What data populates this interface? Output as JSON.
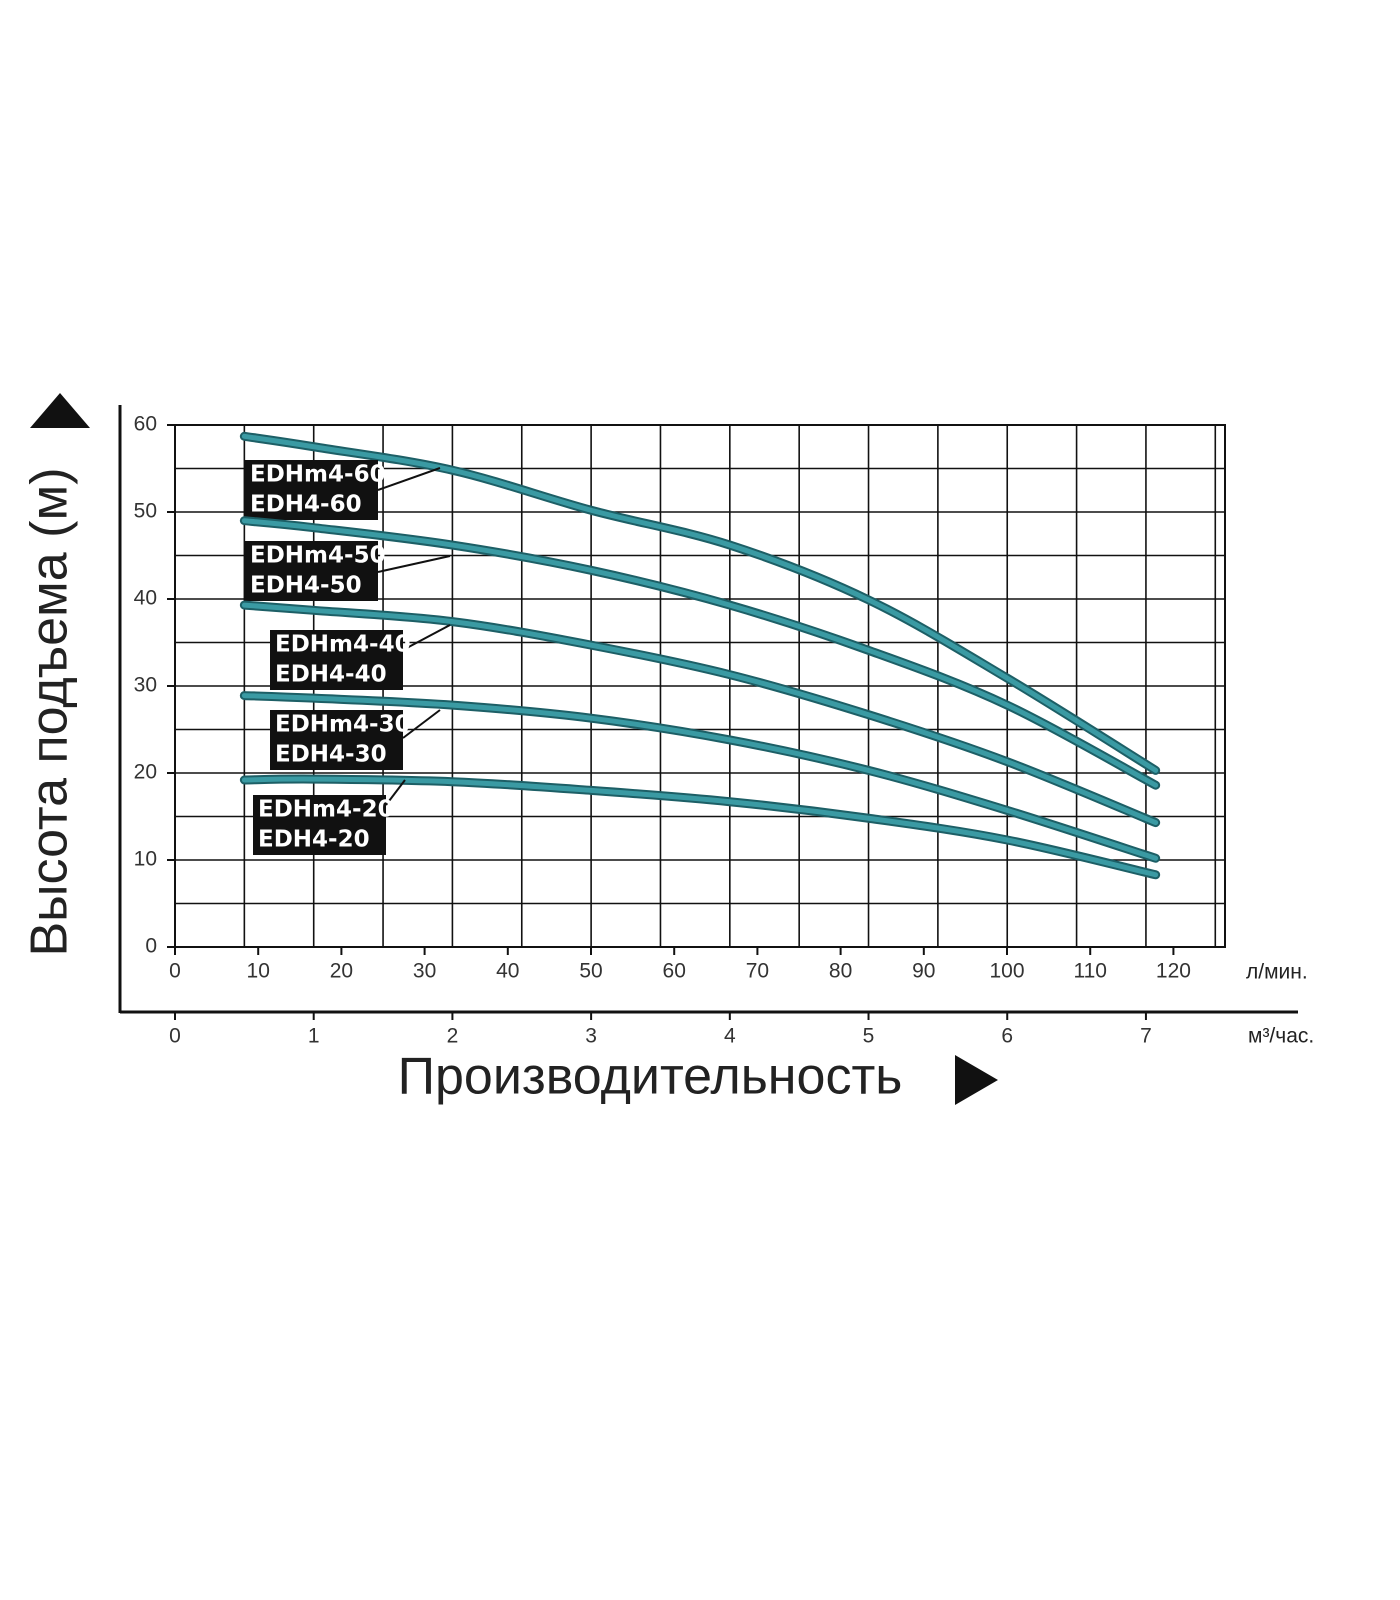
{
  "chart_data": {
    "type": "line",
    "y_label": "Высота подъема (м)",
    "x_label": "Производительность",
    "x_unit": "м³/час.",
    "x2_unit": "л/мин.",
    "xlim": [
      0,
      7.57
    ],
    "xticks": [
      0,
      1,
      2,
      3,
      4,
      5,
      6,
      7
    ],
    "x2lim": [
      0,
      126.2
    ],
    "x2ticks": [
      0,
      10,
      20,
      30,
      40,
      50,
      60,
      70,
      80,
      90,
      100,
      110,
      120
    ],
    "ylim": [
      0,
      60
    ],
    "yticks": [
      0,
      10,
      20,
      30,
      40,
      50,
      60
    ],
    "xgrid": [
      0.5,
      1,
      1.5,
      2,
      2.5,
      3,
      3.5,
      4,
      4.5,
      5,
      5.5,
      6,
      6.5,
      7,
      7.5
    ],
    "ygrid": [
      5,
      10,
      15,
      20,
      25,
      30,
      35,
      40,
      45,
      50,
      55
    ],
    "x": [
      0.5,
      1,
      2,
      3,
      4,
      5,
      6,
      7.07
    ],
    "series": [
      {
        "labels": [
          "EDHm4-60",
          "EDH4-60"
        ],
        "color": "#3a9aa3",
        "values": [
          58.7,
          57.5,
          54.8,
          50.2,
          46.2,
          39.9,
          30.9,
          20.3
        ]
      },
      {
        "labels": [
          "EDHm4-50",
          "EDH4-50"
        ],
        "color": "#3a9aa3",
        "values": [
          49.0,
          48.2,
          46.2,
          43.3,
          39.3,
          34.1,
          27.8,
          18.6
        ]
      },
      {
        "labels": [
          "EDHm4-40",
          "EDH4-40"
        ],
        "color": "#3a9aa3",
        "values": [
          39.3,
          38.7,
          37.4,
          34.7,
          31.3,
          26.7,
          21.3,
          14.3
        ]
      },
      {
        "labels": [
          "EDHm4-30",
          "EDH4-30"
        ],
        "color": "#3a9aa3",
        "values": [
          28.9,
          28.6,
          27.8,
          26.3,
          23.8,
          20.3,
          15.7,
          10.2
        ]
      },
      {
        "labels": [
          "EDHm4-20",
          "EDH4-20"
        ],
        "color": "#3a9aa3",
        "values": [
          19.2,
          19.3,
          19.0,
          18.0,
          16.7,
          14.8,
          12.3,
          8.3
        ]
      }
    ]
  }
}
